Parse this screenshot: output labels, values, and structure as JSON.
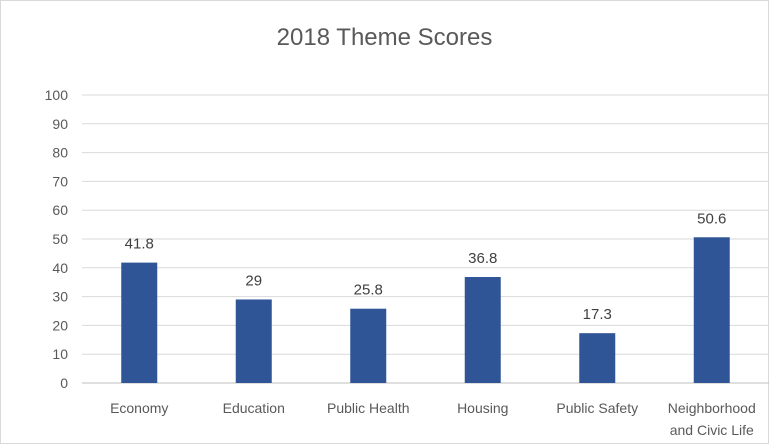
{
  "chart_data": {
    "type": "bar",
    "title": "2018 Theme Scores",
    "xlabel": "",
    "ylabel": "",
    "categories": [
      "Economy",
      "Education",
      "Public Health",
      "Housing",
      "Public Safety",
      "Neighborhood and Civic Life"
    ],
    "category_lines": [
      [
        "Economy"
      ],
      [
        "Education"
      ],
      [
        "Public Health"
      ],
      [
        "Housing"
      ],
      [
        "Public Safety"
      ],
      [
        "Neighborhood",
        "and Civic Life"
      ]
    ],
    "values": [
      41.8,
      29,
      25.8,
      36.8,
      17.3,
      50.6
    ],
    "data_labels": [
      "41.8",
      "29",
      "25.8",
      "36.8",
      "17.3",
      "50.6"
    ],
    "ylim": [
      0,
      100
    ],
    "yticks": [
      0,
      10,
      20,
      30,
      40,
      50,
      60,
      70,
      80,
      90,
      100
    ],
    "grid": true,
    "legend": "none",
    "bar_color": "#2f5597",
    "grid_color": "#d9d9d9"
  }
}
